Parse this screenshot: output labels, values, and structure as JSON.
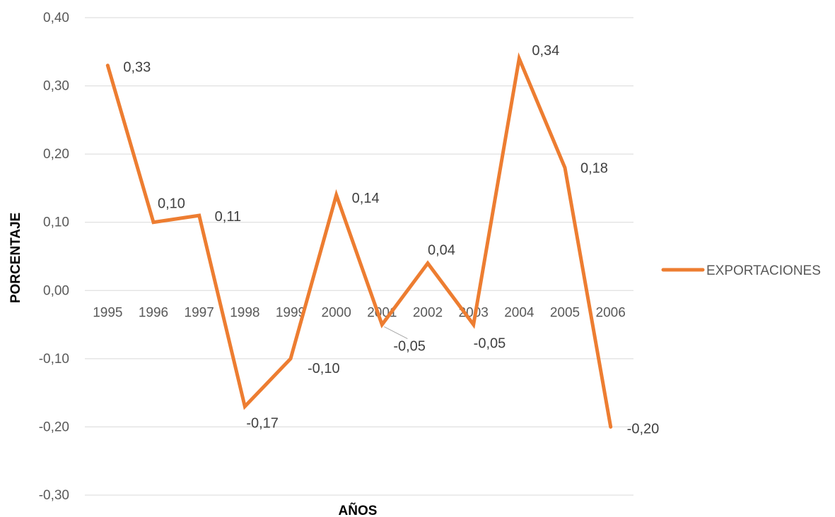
{
  "chart_data": {
    "type": "line",
    "title": "",
    "xlabel": "AÑOS",
    "ylabel": "PORCENTAJE",
    "categories": [
      "1995",
      "1996",
      "1997",
      "1998",
      "1999",
      "2000",
      "2001",
      "2002",
      "2003",
      "2004",
      "2005",
      "2006"
    ],
    "series": [
      {
        "name": "EXPORTACIONES",
        "color": "#ED7D31",
        "values": [
          0.33,
          0.1,
          0.11,
          -0.17,
          -0.1,
          0.14,
          -0.05,
          0.04,
          -0.05,
          0.34,
          0.18,
          -0.2
        ],
        "data_labels": [
          "0,33",
          "0,10",
          "0,11",
          "-0,17",
          "-0,10",
          "0,14",
          "-0,05",
          "0,04",
          "-0,05",
          "0,34",
          "0,18",
          "-0,20"
        ]
      }
    ],
    "ylim": [
      -0.3,
      0.4
    ],
    "yticks": [
      -0.3,
      -0.2,
      -0.1,
      0.0,
      0.1,
      0.2,
      0.3,
      0.4
    ],
    "ytick_labels": [
      "-0,30",
      "-0,20",
      "-0,10",
      "0,00",
      "0,10",
      "0,20",
      "0,30",
      "0,40"
    ],
    "grid": true,
    "legend": "right"
  }
}
